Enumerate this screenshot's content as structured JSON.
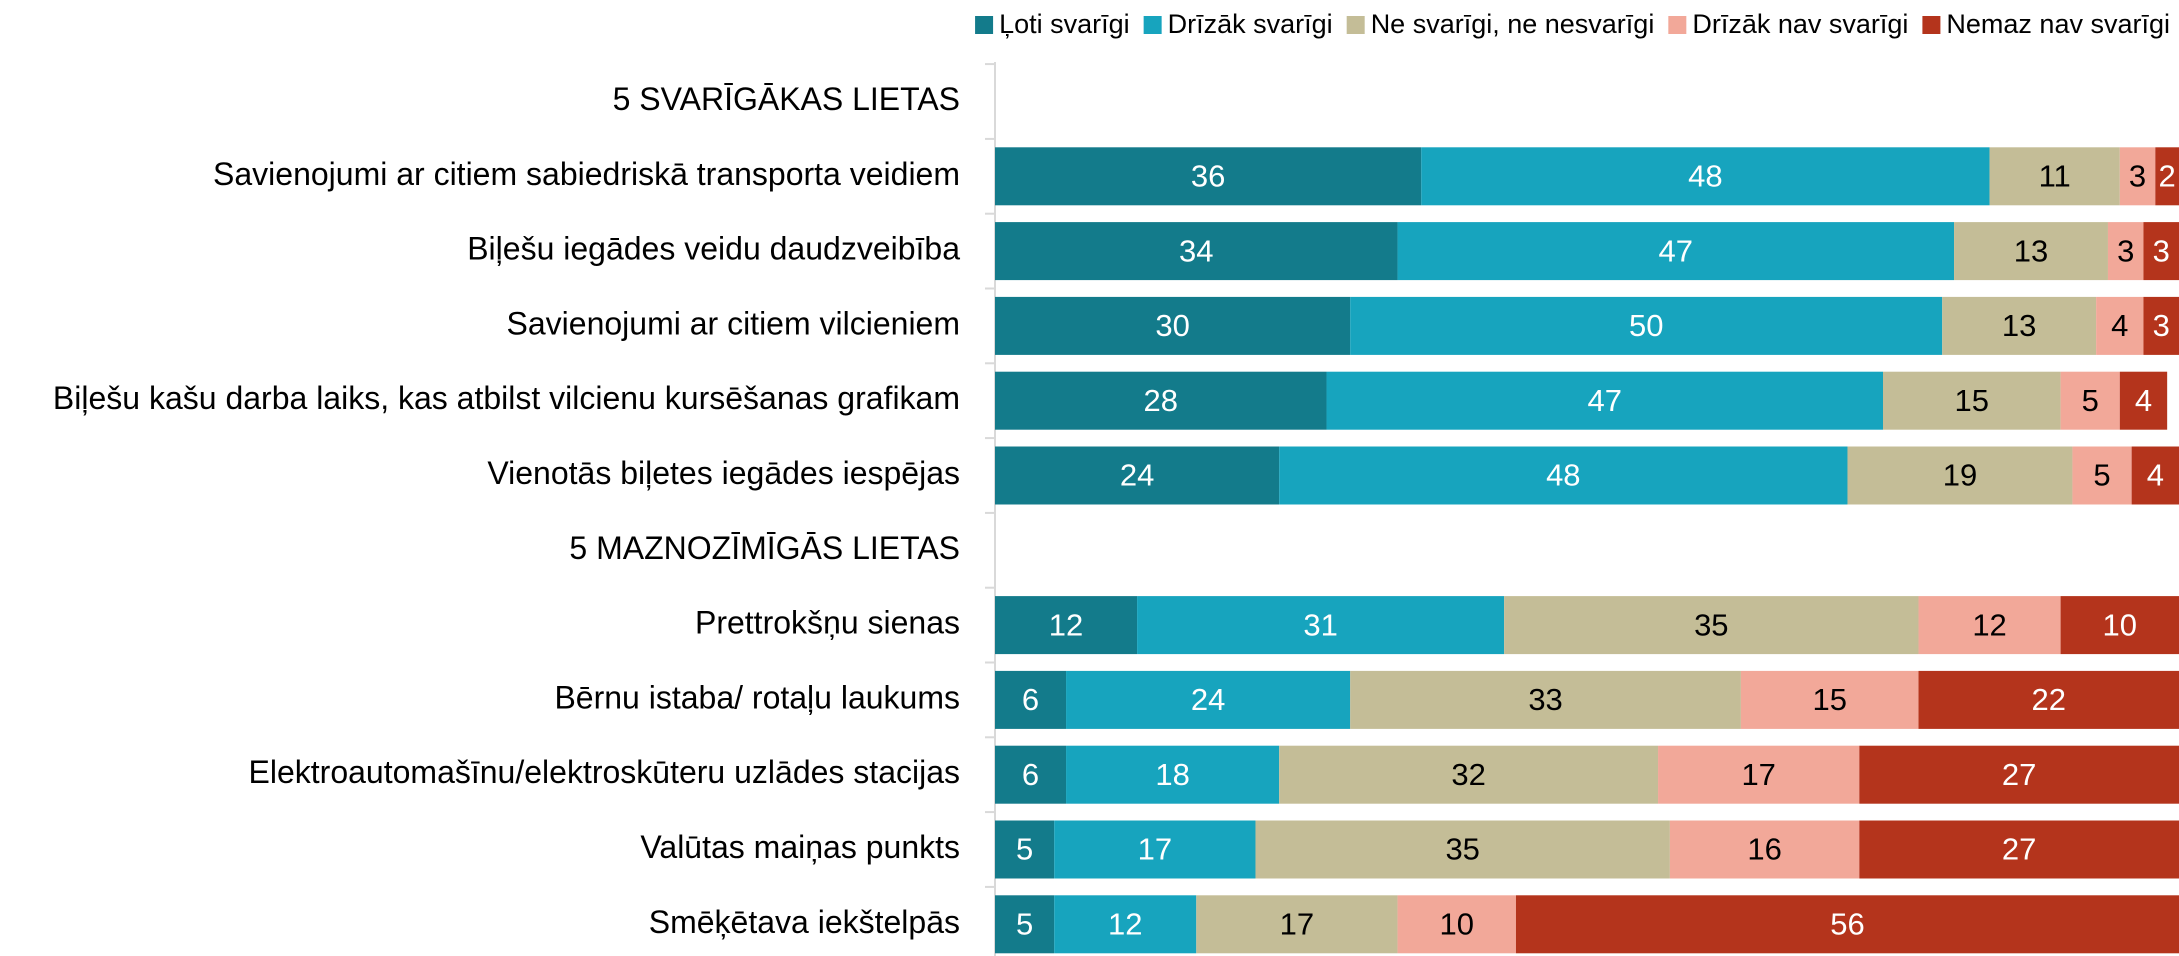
{
  "chart_data": {
    "type": "stacked-bar-horizontal",
    "categories": [
      "5 SVARĪGĀKAS LIETAS",
      "Savienojumi ar citiem sabiedriskā transporta veidiem",
      "Biļešu iegādes veidu daudzveibība",
      "Savienojumi ar citiem vilcieniem",
      "Biļešu kašu darba laiks, kas atbilst vilcienu kursēšanas grafikam",
      "Vienotās biļetes  iegādes iespējas",
      "5 MAZNOZĪMĪGĀS LIETAS",
      "Prettrokšņu sienas",
      "Bērnu istaba/ rotaļu laukums",
      "Elektroautomašīnu/elektroskūteru uzlādes stacijas",
      "Valūtas maiņas punkts",
      "Smēķētava iekštelpās"
    ],
    "series": [
      {
        "name": "Ļoti svarīgi",
        "color": "#137b8b",
        "values": [
          null,
          36,
          34,
          30,
          28,
          24,
          null,
          12,
          6,
          6,
          5,
          5
        ]
      },
      {
        "name": "Drīzāk svarīgi",
        "color": "#17a4be",
        "values": [
          null,
          48,
          47,
          50,
          47,
          48,
          null,
          31,
          24,
          18,
          17,
          12
        ]
      },
      {
        "name": "Ne svarīgi, ne nesvarīgi",
        "color": "#c4bd97",
        "values": [
          null,
          11,
          13,
          13,
          15,
          19,
          null,
          35,
          33,
          32,
          35,
          17
        ]
      },
      {
        "name": "Drīzāk nav svarīgi",
        "color": "#f2a899",
        "values": [
          null,
          3,
          3,
          4,
          5,
          5,
          null,
          12,
          15,
          17,
          16,
          10
        ]
      },
      {
        "name": "Nemaz nav svarīgi",
        "color": "#b4341c",
        "values": [
          null,
          2,
          3,
          3,
          4,
          4,
          null,
          10,
          22,
          27,
          27,
          56
        ]
      }
    ],
    "xlim": [
      0,
      100
    ],
    "legend": "top-right"
  }
}
